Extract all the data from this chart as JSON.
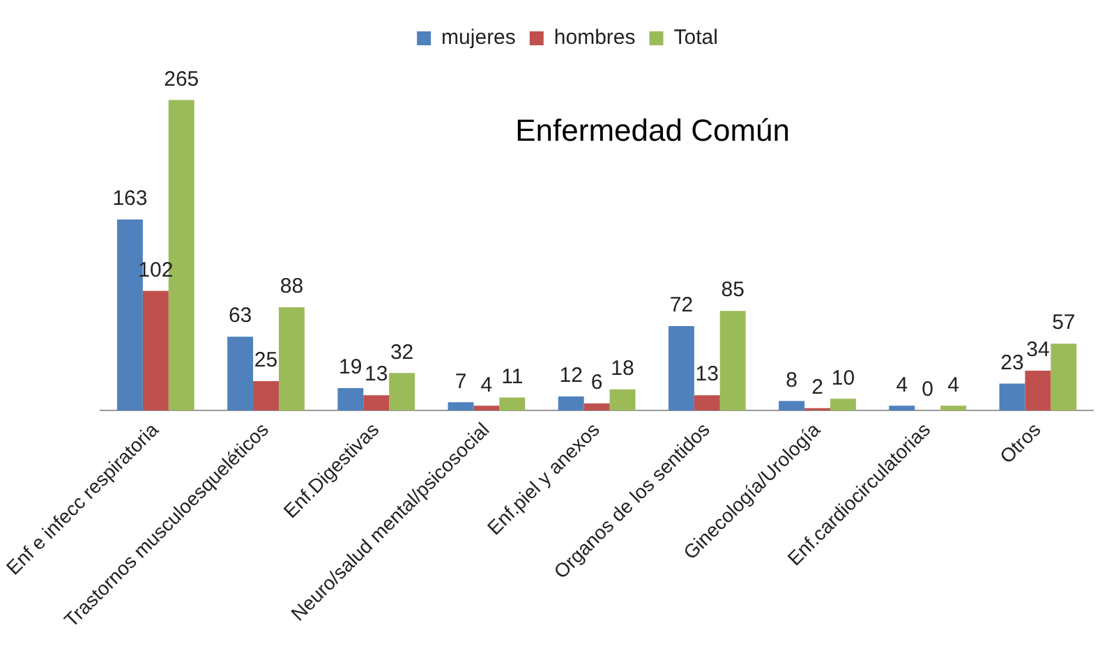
{
  "chart_data": {
    "type": "bar",
    "title": "Enfermedad Común",
    "categories": [
      "Enf e infecc respiratoria",
      "Trastornos musculoesqueléticos",
      "Enf.Digestivas",
      "Neuro/salud mental/psicosocial",
      "Enf.piel y anexos",
      "Organos de los sentidos",
      "Ginecología/Urología",
      "Enf.cardiocirculatorias",
      "Otros"
    ],
    "series": [
      {
        "name": "mujeres",
        "color": "#4f81bd",
        "values": [
          163,
          63,
          19,
          7,
          12,
          72,
          8,
          4,
          23
        ]
      },
      {
        "name": "hombres",
        "color": "#c0504d",
        "values": [
          102,
          25,
          13,
          4,
          6,
          13,
          2,
          0,
          34
        ]
      },
      {
        "name": "Total",
        "color": "#9bbb59",
        "values": [
          265,
          88,
          32,
          11,
          18,
          85,
          10,
          4,
          57
        ]
      }
    ],
    "data_labels": true,
    "grid": false,
    "legend": "top"
  }
}
